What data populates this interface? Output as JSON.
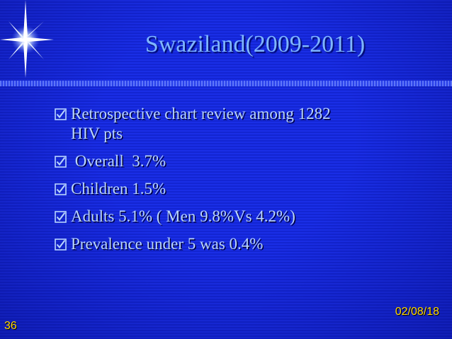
{
  "slide": {
    "title": "Swaziland(2009-2011)",
    "bullets": [
      {
        "line1": "Retrospective chart review among 1282",
        "line2": "HIV pts"
      },
      {
        "line1": " Overall  3.7%"
      },
      {
        "line1": "Children 1.5%"
      },
      {
        "line1": "Adults 5.1% ( Men 9.8%Vs 4.2%)"
      },
      {
        "line1": "Prevalence under 5 was 0.4%"
      }
    ],
    "date": "02/08/18",
    "page_number": "36"
  },
  "colors": {
    "background": "#1a2ee6",
    "title": "#7fb6ff",
    "text": "#b9d5ff",
    "footer": "#ffd700"
  },
  "icons": [
    "sparkle-star-icon",
    "checkbox-checked-icon"
  ]
}
